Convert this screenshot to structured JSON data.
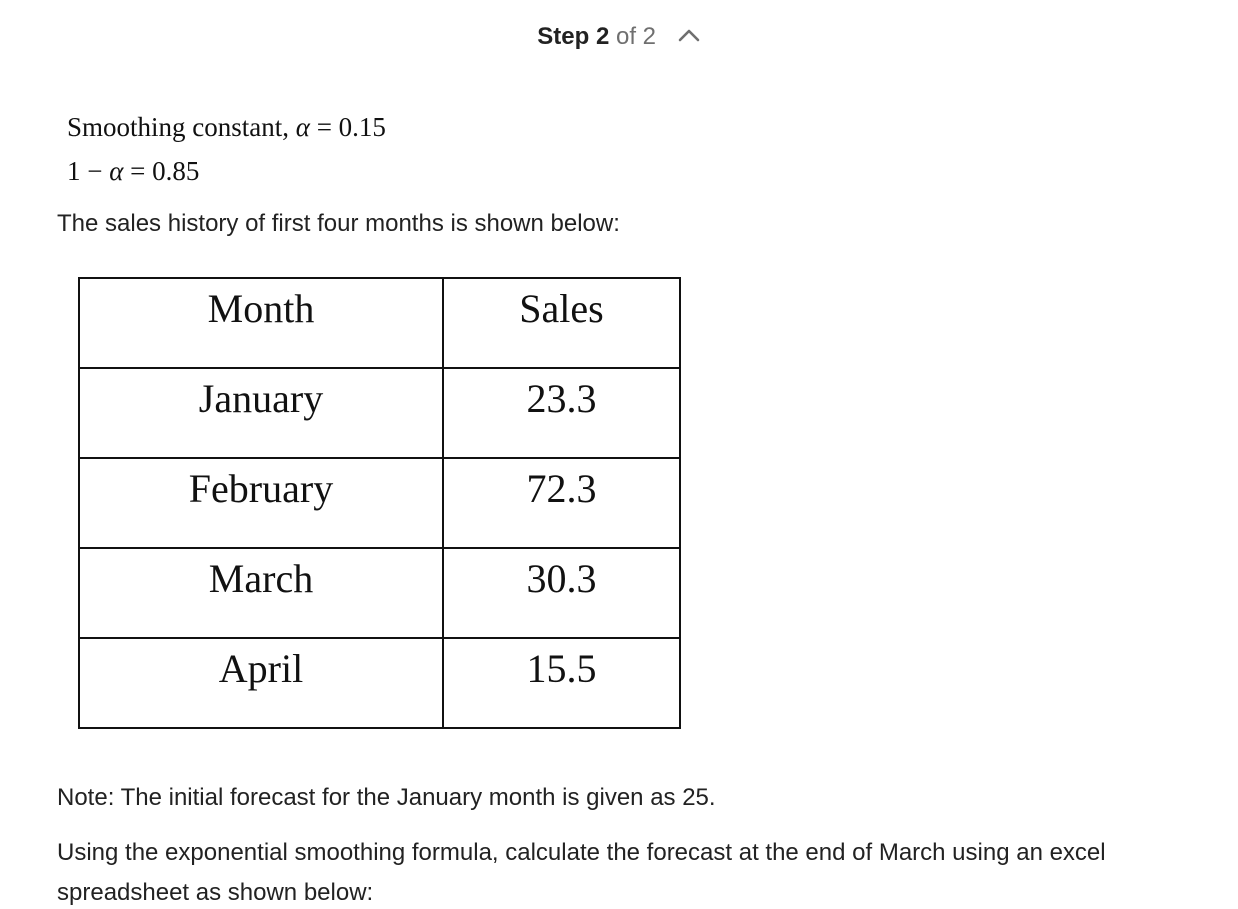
{
  "header": {
    "step_label": "Step",
    "step_current": "2",
    "step_of_text": "of 2",
    "chevron_icon": "chevron-up-icon"
  },
  "formulas": {
    "line1_prefix": "Smoothing constant,",
    "line1_symbol": "α",
    "line1_suffix": " = 0.15",
    "line2_prefix": "1 − ",
    "line2_symbol": "α",
    "line2_suffix": " = 0.85"
  },
  "intro_text": "The sales history of first four months is shown below:",
  "table": {
    "headers": [
      "Month",
      "Sales"
    ],
    "rows": [
      [
        "January",
        "23.3"
      ],
      [
        "February",
        "72.3"
      ],
      [
        "March",
        "30.3"
      ],
      [
        "April",
        "15.5"
      ]
    ]
  },
  "note_text": "Note: The initial forecast for the January month is given as 25.",
  "instruction_text": "Using the exponential smoothing formula, calculate the forecast at the end of March using an excel spreadsheet as shown below:",
  "colors": {
    "text": "#222222",
    "muted": "#6f6f6f",
    "border": "#111111"
  }
}
